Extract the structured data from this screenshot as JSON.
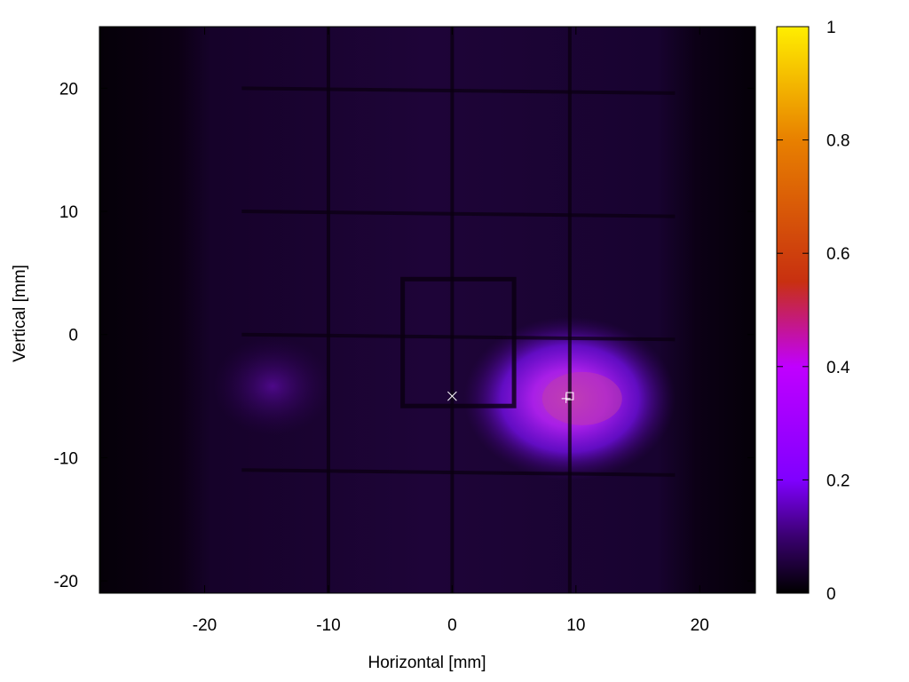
{
  "chart_data": {
    "type": "heatmap",
    "xlabel": "Horizontal [mm]",
    "ylabel": "Vertical [mm]",
    "xlim": [
      -28.5,
      24.5
    ],
    "ylim": [
      -21,
      25
    ],
    "x_ticks": [
      -20,
      -10,
      0,
      10,
      20
    ],
    "y_ticks": [
      -20,
      -10,
      0,
      10,
      20
    ],
    "colorbar": {
      "range": [
        0,
        1
      ],
      "ticks": [
        "0",
        "0.2",
        "0.4",
        "0.6",
        "0.8",
        "1"
      ],
      "colors": [
        "#000000",
        "#3a0070",
        "#8000ff",
        "#c000ff",
        "#c83010",
        "#e88000",
        "#ffee00"
      ]
    },
    "background_level": 0.05,
    "features": {
      "bright_spot": {
        "center": [
          9.5,
          -5.2
        ],
        "peak": 0.45,
        "sigma_x": 4.5,
        "sigma_y": 3.5
      },
      "faint_spot": {
        "center": [
          -14.5,
          -4.2
        ],
        "peak": 0.1,
        "sigma_x": 3,
        "sigma_y": 2.5
      },
      "wire_grid_vertical_mm": [
        -10,
        0,
        9.5
      ],
      "wire_grid_horizontal_mm": [
        20,
        10,
        0,
        -11
      ],
      "central_square_mm": {
        "x": [
          -4,
          5
        ],
        "y": [
          -5.8,
          4.5
        ]
      }
    },
    "markers": [
      {
        "name": "cross",
        "x": 0,
        "y": -5
      },
      {
        "name": "plus",
        "x": 9.2,
        "y": -5.2
      },
      {
        "name": "square",
        "x": 9.5,
        "y": -5
      }
    ]
  }
}
